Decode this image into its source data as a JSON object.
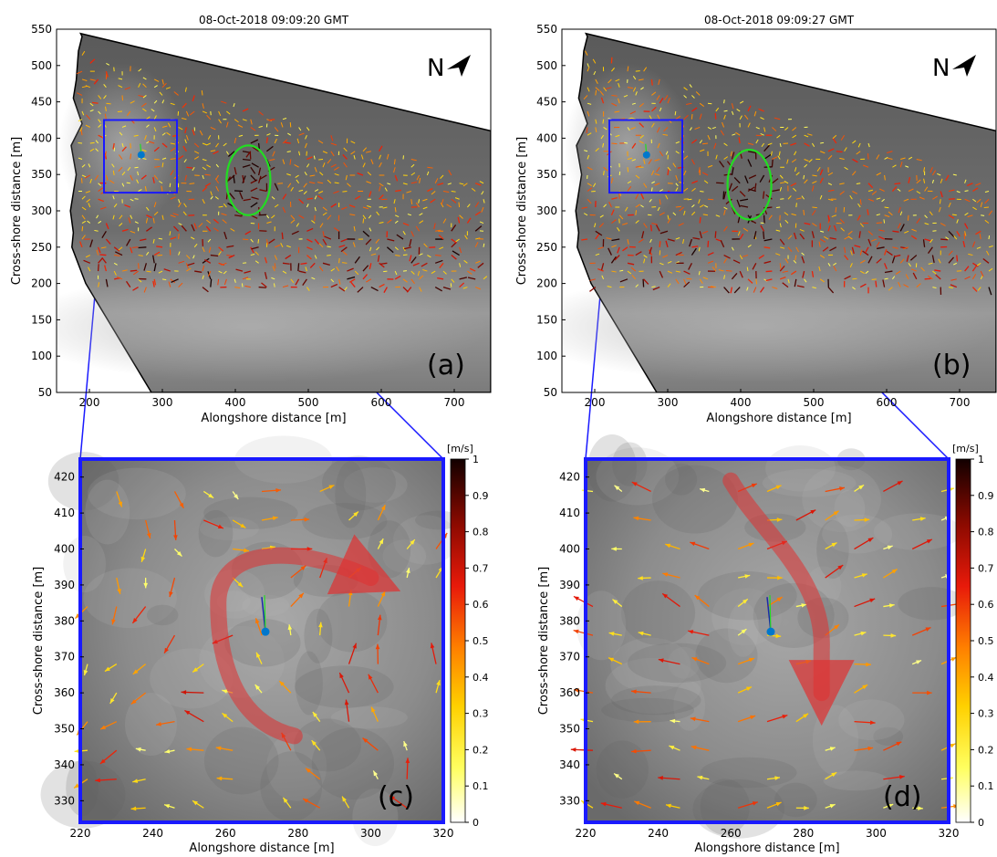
{
  "figure": {
    "panels": [
      {
        "id": "a",
        "type": "overview",
        "title": "08-Oct-2018 09:09:20 GMT",
        "label": "(a)",
        "north_label": "N",
        "xlabel": "Alongshore distance [m]",
        "ylabel": "Cross-shore distance [m]",
        "xlim": [
          155,
          750
        ],
        "ylim": [
          50,
          550
        ],
        "xticks": [
          "200",
          "300",
          "400",
          "500",
          "600",
          "700"
        ],
        "yticks": [
          "50",
          "100",
          "150",
          "200",
          "250",
          "300",
          "350",
          "400",
          "450",
          "500",
          "550"
        ],
        "inset_box": {
          "x": [
            220,
            320
          ],
          "y": [
            325,
            425
          ]
        },
        "sensor_point": {
          "x": 271,
          "y": 377
        },
        "rip_contour_center": {
          "x": 418,
          "y": 342
        }
      },
      {
        "id": "b",
        "type": "overview",
        "title": "08-Oct-2018 09:09:27 GMT",
        "label": "(b)",
        "north_label": "N",
        "xlabel": "Alongshore distance [m]",
        "ylabel": "Cross-shore distance [m]",
        "xlim": [
          155,
          750
        ],
        "ylim": [
          50,
          550
        ],
        "xticks": [
          "200",
          "300",
          "400",
          "500",
          "600",
          "700"
        ],
        "yticks": [
          "50",
          "100",
          "150",
          "200",
          "250",
          "300",
          "350",
          "400",
          "450",
          "500",
          "550"
        ],
        "inset_box": {
          "x": [
            220,
            320
          ],
          "y": [
            325,
            425
          ]
        },
        "sensor_point": {
          "x": 271,
          "y": 377
        },
        "rip_contour_center": {
          "x": 412,
          "y": 336
        }
      },
      {
        "id": "c",
        "type": "zoom",
        "label": "(c)",
        "xlabel": "Alongshore distance [m]",
        "ylabel": "Cross-shore distance [m]",
        "xlim": [
          220,
          320
        ],
        "ylim": [
          324,
          425
        ],
        "xticks": [
          "220",
          "240",
          "260",
          "280",
          "300",
          "320"
        ],
        "yticks": [
          "330",
          "340",
          "350",
          "360",
          "370",
          "380",
          "390",
          "400",
          "410",
          "420"
        ],
        "sensor_point": {
          "x": 271,
          "y": 377
        },
        "flow_arrow": "curved"
      },
      {
        "id": "d",
        "type": "zoom",
        "label": "(d)",
        "xlabel": "Alongshore distance [m]",
        "ylabel": "Cross-shore distance [m]",
        "xlim": [
          220,
          320
        ],
        "ylim": [
          324,
          425
        ],
        "xticks": [
          "220",
          "240",
          "260",
          "280",
          "300",
          "320"
        ],
        "yticks": [
          "330",
          "340",
          "350",
          "360",
          "370",
          "380",
          "390",
          "400",
          "410",
          "420"
        ],
        "sensor_point": {
          "x": 271,
          "y": 377
        },
        "flow_arrow": "down"
      }
    ],
    "colorbar": {
      "unit": "[m/s]",
      "range": [
        0,
        1
      ],
      "ticks": [
        "0",
        "0.1",
        "0.2",
        "0.3",
        "0.4",
        "0.5",
        "0.6",
        "0.7",
        "0.8",
        "0.9",
        "1"
      ]
    },
    "colors": {
      "inset_box": "#1a1aff",
      "rip_contour": "#22dd22",
      "sensor_point": "#0077cc",
      "flow_arrow": "#e03030"
    }
  },
  "chart_data": [
    {
      "type": "scatter",
      "panel": "a",
      "title": "08-Oct-2018 09:09:20 GMT",
      "xlabel": "Alongshore distance [m]",
      "ylabel": "Cross-shore distance [m]",
      "xlim": [
        155,
        750
      ],
      "ylim": [
        50,
        550
      ],
      "points": [
        {
          "x": 271,
          "y": 377
        }
      ]
    },
    {
      "type": "scatter",
      "panel": "b",
      "title": "08-Oct-2018 09:09:27 GMT",
      "xlabel": "Alongshore distance [m]",
      "ylabel": "Cross-shore distance [m]",
      "xlim": [
        155,
        750
      ],
      "ylim": [
        50,
        550
      ],
      "points": [
        {
          "x": 271,
          "y": 377
        }
      ]
    },
    {
      "type": "scatter",
      "panel": "c",
      "xlabel": "Alongshore distance [m]",
      "ylabel": "Cross-shore distance [m]",
      "xlim": [
        220,
        320
      ],
      "ylim": [
        324,
        425
      ],
      "points": [
        {
          "x": 271,
          "y": 377
        }
      ]
    },
    {
      "type": "scatter",
      "panel": "d",
      "xlabel": "Alongshore distance [m]",
      "ylabel": "Cross-shore distance [m]",
      "xlim": [
        220,
        320
      ],
      "ylim": [
        324,
        425
      ],
      "points": [
        {
          "x": 271,
          "y": 377
        }
      ]
    }
  ]
}
